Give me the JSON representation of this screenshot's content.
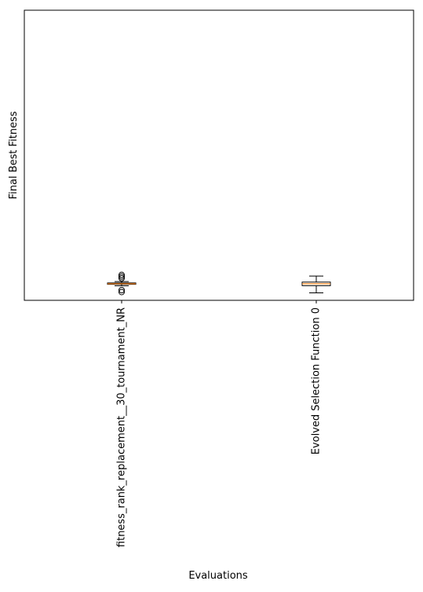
{
  "chart_data": {
    "type": "box",
    "title": "",
    "xlabel": "Evaluations",
    "ylabel": "Final Best Fitness",
    "categories": [
      "fitness_rank_replacement__30_tournament_NR",
      "Evolved Selection Function 0"
    ],
    "boxes": [
      {
        "whisker_low": 0.25,
        "q1": 0.8,
        "median": 1.0,
        "q3": 1.3,
        "whisker_high": 1.8,
        "outliers": [
          -2.0,
          -1.3,
          3.0,
          3.6,
          4.2
        ]
      },
      {
        "whisker_low": -2.3,
        "q1": 0.3,
        "median": 1.0,
        "q3": 1.6,
        "whisker_high": 3.8,
        "outliers": []
      }
    ],
    "ylim": [
      -5,
      100
    ],
    "y_ticks_shown": false,
    "grid": false,
    "colors": {
      "box": "#000000",
      "median": "#ff7f0e",
      "outlier": "#000000"
    }
  }
}
